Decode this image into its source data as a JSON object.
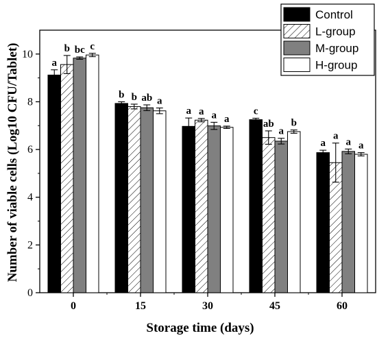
{
  "chart_data": {
    "type": "bar",
    "xlabel": "Storage time (days)",
    "ylabel": "Number of viable cells (Log10 CFU/Tablet)",
    "categories": [
      "0",
      "15",
      "30",
      "45",
      "60"
    ],
    "ylim": [
      0,
      11
    ],
    "yticks": [
      0,
      2,
      4,
      6,
      8,
      10
    ],
    "grid": false,
    "legend_position": "top-right",
    "series": [
      {
        "name": "Control",
        "fill": "#000000",
        "pattern": "solid",
        "values": [
          9.12,
          7.93,
          6.97,
          7.25,
          5.87
        ],
        "errors": [
          0.22,
          0.07,
          0.35,
          0.06,
          0.1
        ],
        "labels": [
          "a",
          "b",
          "a",
          "c",
          "a"
        ]
      },
      {
        "name": "L-group",
        "fill": "#ffffff",
        "pattern": "hatch",
        "values": [
          9.56,
          7.8,
          7.23,
          6.5,
          5.45
        ],
        "errors": [
          0.38,
          0.1,
          0.07,
          0.28,
          0.82
        ],
        "labels": [
          "b",
          "b",
          "a",
          "ab",
          "a"
        ]
      },
      {
        "name": "M-group",
        "fill": "#808080",
        "pattern": "solid",
        "values": [
          9.83,
          7.75,
          6.99,
          6.35,
          5.92
        ],
        "errors": [
          0.05,
          0.12,
          0.15,
          0.12,
          0.1
        ],
        "labels": [
          "bc",
          "ab",
          "a",
          "a",
          "a"
        ]
      },
      {
        "name": "H-group",
        "fill": "#ffffff",
        "pattern": "solid",
        "values": [
          9.96,
          7.62,
          6.93,
          6.75,
          5.8
        ],
        "errors": [
          0.07,
          0.12,
          0.05,
          0.07,
          0.07
        ],
        "labels": [
          "c",
          "a",
          "a",
          "b",
          "a"
        ]
      }
    ]
  }
}
